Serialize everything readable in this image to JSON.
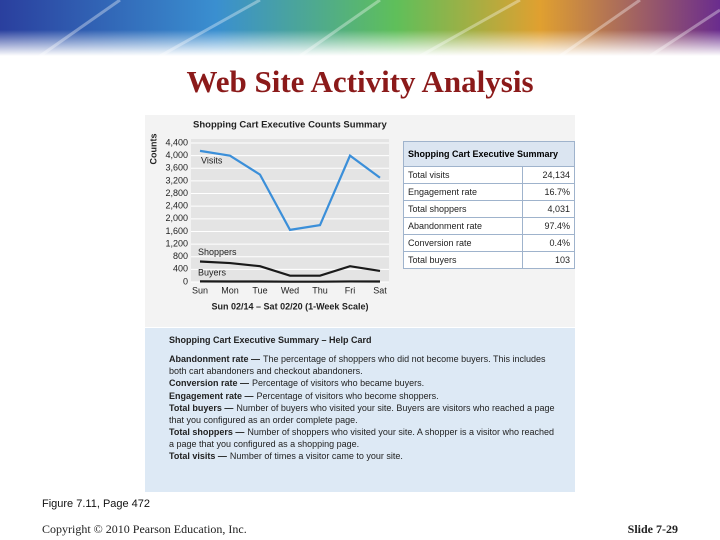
{
  "slide_title": "Web Site Activity Analysis",
  "chart_data": {
    "type": "line",
    "title": "Shopping Cart Executive Counts Summary",
    "y_label": "Counts",
    "x_label": "Sun 02/14 – Sat 02/20 (1-Week Scale)",
    "categories": [
      "Sun",
      "Mon",
      "Tue",
      "Wed",
      "Thu",
      "Fri",
      "Sat"
    ],
    "series": [
      {
        "name": "Visits",
        "color": "#3b8fd9",
        "values": [
          4150,
          4000,
          3400,
          1650,
          1800,
          4000,
          3300
        ]
      },
      {
        "name": "Shoppers",
        "color": "#1a1a1a",
        "values": [
          650,
          600,
          500,
          200,
          200,
          500,
          350
        ]
      },
      {
        "name": "Buyers",
        "color": "#1a1a1a",
        "values": [
          20,
          15,
          15,
          10,
          10,
          18,
          15
        ]
      }
    ],
    "ylim": [
      0,
      4400
    ],
    "yticks": [
      0,
      400,
      800,
      {
        "value": 1200,
        "label": "1,200"
      },
      {
        "value": 1600,
        "label": "1,600"
      },
      {
        "value": 2000,
        "label": "2,000"
      },
      {
        "value": 2400,
        "label": "2,400"
      },
      {
        "value": 2800,
        "label": "2,800"
      },
      {
        "value": 3200,
        "label": "3,200"
      },
      {
        "value": 3600,
        "label": "3,600"
      },
      {
        "value": 4000,
        "label": "4,000"
      },
      {
        "value": 4400,
        "label": "4,400"
      }
    ],
    "grid": true
  },
  "summary_table": {
    "title": "Shopping Cart Executive Summary",
    "rows": [
      [
        "Total visits",
        "24,134"
      ],
      [
        "Engagement rate",
        "16.7%"
      ],
      [
        "Total shoppers",
        "4,031"
      ],
      [
        "Abandonment rate",
        "97.4%"
      ],
      [
        "Conversion rate",
        "0.4%"
      ],
      [
        "Total buyers",
        "103"
      ]
    ]
  },
  "help_card": {
    "title": "Shopping Cart Executive Summary – Help Card",
    "entries": [
      {
        "term": "Abandonment rate —",
        "definition": "The percentage of shoppers who did not become buyers. This includes both cart abandoners and checkout abandoners."
      },
      {
        "term": "Conversion rate —",
        "definition": "Percentage of visitors who became buyers."
      },
      {
        "term": "Engagement rate —",
        "definition": "Percentage of visitors who become shoppers."
      },
      {
        "term": "Total buyers —",
        "definition": "Number of buyers who visited your site. Buyers are visitors who reached a page that you configured as an order complete page."
      },
      {
        "term": "Total shoppers —",
        "definition": "Number of shoppers who visited your site. A shopper is a visitor who reached a page that you configured as a shopping page."
      },
      {
        "term": "Total visits —",
        "definition": "Number of times a visitor came to your site."
      }
    ]
  },
  "caption": "Figure 7.11, Page 472",
  "footer": {
    "copyright": "Copyright © 2010 Pearson Education, Inc.",
    "slide": "Slide 7-29"
  }
}
